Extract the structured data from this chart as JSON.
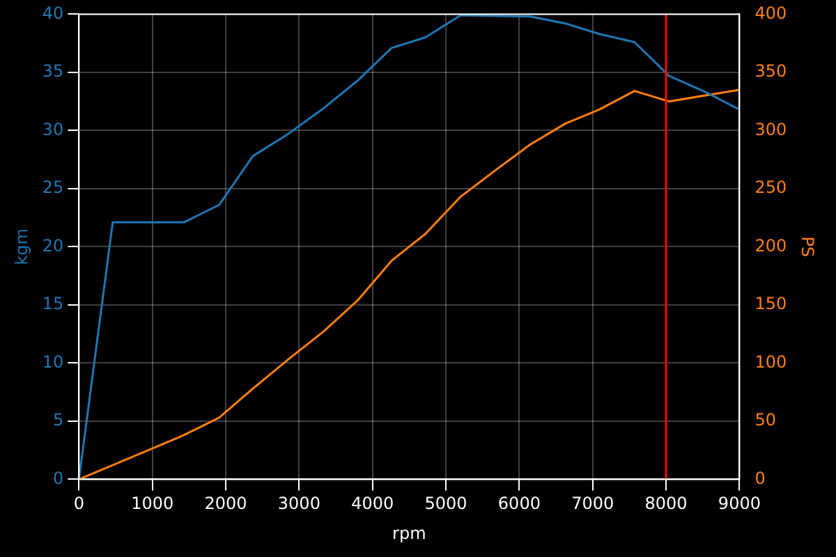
{
  "chart_data": {
    "type": "line",
    "xlabel": "rpm",
    "ylabel": "kgm",
    "y2label": "PS",
    "xlim": [
      0,
      9000
    ],
    "xticks": [
      0,
      1000,
      2000,
      3000,
      4000,
      5000,
      6000,
      7000,
      8000,
      9000
    ],
    "ylim": [
      0,
      40
    ],
    "yticks": [
      0,
      5,
      10,
      15,
      20,
      25,
      30,
      35,
      40
    ],
    "y2lim": [
      0,
      400
    ],
    "y2ticks": [
      0,
      50,
      100,
      150,
      200,
      250,
      300,
      350,
      400
    ],
    "grid": true,
    "legend": false,
    "marker": "none",
    "line_style": "solid",
    "series": [
      {
        "color": "#1f77b4",
        "x": [
          0,
          460,
          1430,
          1910,
          2370,
          2850,
          3330,
          3800,
          4260,
          4720,
          5200,
          6150,
          6630,
          7090,
          7570,
          8040,
          8540,
          9000
        ],
        "values": [
          0,
          22.1,
          22.1,
          23.6,
          27.8,
          29.7,
          31.9,
          34.3,
          37.1,
          38.0,
          39.9,
          39.8,
          39.2,
          38.3,
          37.6,
          34.7,
          33.3,
          31.8
        ]
      },
      {
        "color": "#ff7f0e",
        "axis": "y2",
        "x": [
          0,
          1430,
          1910,
          2370,
          2850,
          3330,
          3800,
          4260,
          4720,
          5200,
          5680,
          6150,
          6630,
          7090,
          7570,
          8040,
          9000
        ],
        "values": [
          0,
          38,
          53,
          78,
          103,
          127,
          154,
          188,
          211,
          243,
          266,
          288,
          306,
          318,
          334,
          325,
          335
        ]
      }
    ],
    "ref_lines": [
      {
        "axis": "x",
        "value": 8000,
        "color": "#ff0000",
        "line_style": "solid"
      }
    ]
  }
}
